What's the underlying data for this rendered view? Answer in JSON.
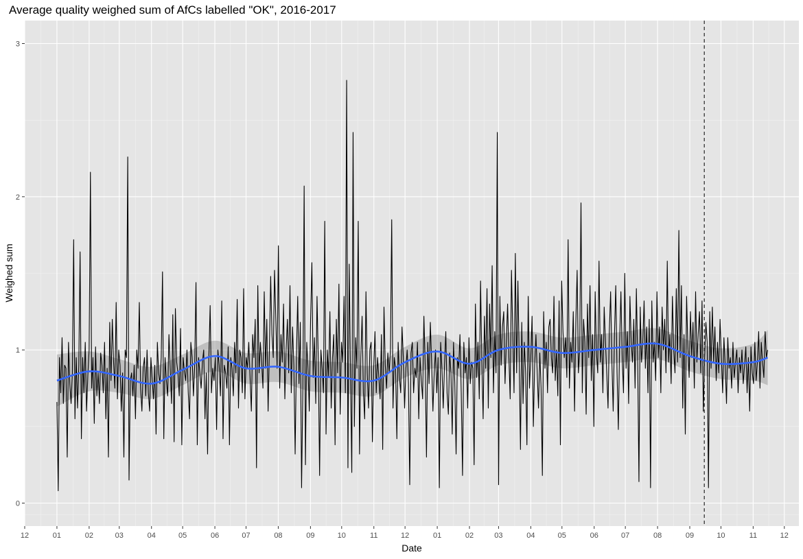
{
  "chart_data": {
    "type": "line",
    "title": "Average quality weighed sum of AfCs labelled \"OK\", 2016-2017",
    "xlabel": "Date",
    "ylabel": "Weighed sum",
    "x_range": [
      "2015-12-01",
      "2017-12-15"
    ],
    "ylim": [
      -0.15,
      3.15
    ],
    "y_ticks": [
      0,
      1,
      2,
      3
    ],
    "y_tick_labels": [
      "0",
      "1",
      "2",
      "3"
    ],
    "x_ticks": [
      "2015-12-01",
      "2016-01-01",
      "2016-02-01",
      "2016-03-01",
      "2016-04-01",
      "2016-05-01",
      "2016-06-01",
      "2016-07-01",
      "2016-08-01",
      "2016-09-01",
      "2016-10-01",
      "2016-11-01",
      "2016-12-01",
      "2017-01-01",
      "2017-02-01",
      "2017-03-01",
      "2017-04-01",
      "2017-05-01",
      "2017-06-01",
      "2017-07-01",
      "2017-08-01",
      "2017-09-01",
      "2017-10-01",
      "2017-11-01",
      "2017-12-01"
    ],
    "x_tick_labels": [
      "12",
      "01",
      "02",
      "03",
      "04",
      "05",
      "06",
      "07",
      "08",
      "09",
      "10",
      "11",
      "12",
      "01",
      "02",
      "03",
      "04",
      "05",
      "06",
      "07",
      "08",
      "09",
      "10",
      "11",
      "12"
    ],
    "grid": true,
    "background": "#e5e5e5",
    "vline": {
      "x": "2017-09-15",
      "style": "dashed",
      "color": "#333333"
    },
    "series": [
      {
        "kind": "daily",
        "color": "#000000",
        "start": "2016-01-01",
        "end": "2017-11-15",
        "values": [
          0.66,
          0.08,
          0.95,
          0.72,
          1.08,
          0.65,
          0.9,
          0.88,
          0.3,
          1.05,
          0.78,
          0.65,
          0.85,
          1.72,
          0.55,
          0.95,
          0.62,
          0.9,
          1.64,
          0.42,
          0.95,
          0.72,
          1.05,
          0.6,
          0.83,
          1.0,
          2.16,
          0.75,
          0.95,
          0.52,
          1.02,
          0.7,
          0.85,
          0.65,
          0.98,
          0.9,
          0.72,
          1.05,
          0.55,
          0.88,
          0.3,
          1.18,
          0.8,
          1.2,
          0.92,
          0.75,
          1.31,
          0.68,
          1.0,
          0.9,
          0.6,
          0.85,
          0.3,
          1.0,
          0.95,
          2.26,
          0.15,
          0.8,
          0.85,
          0.7,
          0.9,
          0.55,
          1.0,
          0.88,
          1.31,
          0.75,
          0.6,
          0.88,
          0.95,
          0.7,
          1.0,
          0.72,
          0.6,
          0.95,
          0.8,
          0.68,
          0.9,
          0.45,
          1.05,
          0.85,
          0.78,
          0.95,
          1.51,
          0.42,
          0.95,
          0.8,
          0.7,
          1.1,
          0.88,
          0.65,
          1.23,
          0.4,
          1.27,
          0.92,
          0.85,
          0.7,
          1.14,
          0.38,
          0.95,
          0.86,
          0.8,
          1.0,
          0.72,
          0.55,
          1.05,
          0.95,
          0.7,
          0.9,
          1.44,
          0.38,
          0.95,
          0.85,
          0.75,
          0.92,
          1.0,
          0.55,
          0.85,
          0.32,
          0.95,
          1.29,
          0.72,
          0.88,
          0.8,
          0.95,
          0.48,
          1.0,
          0.9,
          0.7,
          1.32,
          0.42,
          0.9,
          0.85,
          0.75,
          1.02,
          0.38,
          0.95,
          0.88,
          0.7,
          1.05,
          0.85,
          1.33,
          0.62,
          1.0,
          0.95,
          0.72,
          1.4,
          0.68,
          0.95,
          0.88,
          1.05,
          0.82,
          0.6,
          1.1,
          0.95,
          1.2,
          0.23,
          1.42,
          0.85,
          1.05,
          0.92,
          0.75,
          1.38,
          0.88,
          1.2,
          0.6,
          1.0,
          1.48,
          1.1,
          0.95,
          1.52,
          1.2,
          0.88,
          1.68,
          0.75,
          1.1,
          0.92,
          1.3,
          0.68,
          1.0,
          1.2,
          0.85,
          1.42,
          0.72,
          1.15,
          0.9,
          0.32,
          0.95,
          1.35,
          0.78,
          1.18,
          0.1,
          0.75,
          2.07,
          0.25,
          1.05,
          0.88,
          0.6,
          1.2,
          1.57,
          0.82,
          1.08,
          0.65,
          1.35,
          0.92,
          0.18,
          1.0,
          0.88,
          0.72,
          1.84,
          0.45,
          1.0,
          0.82,
          1.25,
          0.62,
          0.95,
          1.1,
          0.38,
          1.2,
          0.85,
          1.43,
          0.58,
          1.05,
          0.92,
          1.35,
          0.72,
          2.76,
          0.23,
          1.56,
          0.85,
          0.2,
          2.42,
          0.5,
          1.08,
          0.88,
          1.84,
          0.32,
          0.95,
          1.22,
          0.72,
          0.55,
          1.38,
          0.85,
          0.62,
          1.0,
          1.05,
          0.4,
          0.88,
          1.12,
          0.72,
          0.95,
          0.82,
          0.68,
          1.1,
          0.35,
          1.28,
          0.9,
          0.75,
          0.98,
          0.85,
          1.0,
          1.85,
          0.62,
          0.95,
          0.88,
          0.42,
          1.05,
          0.82,
          0.72,
          1.15,
          0.95,
          0.62,
          0.88,
          1.0,
          0.78,
          0.12,
          0.98,
          1.05,
          0.72,
          0.88,
          0.82,
          1.05,
          0.55,
          0.95,
          0.8,
          0.68,
          1.22,
          0.9,
          0.3,
          1.05,
          0.78,
          1.18,
          0.92,
          0.6,
          0.85,
          1.0,
          0.72,
          0.95,
          0.1,
          1.05,
          0.88,
          0.62,
          0.9,
          1.12,
          0.72,
          0.58,
          0.98,
          0.85,
          0.45,
          1.05,
          0.78,
          0.32,
          0.95,
          0.88,
          1.1,
          0.72,
          0.18,
          1.05,
          0.85,
          0.95,
          0.62,
          1.08,
          0.78,
          0.92,
          0.88,
          0.25,
          1.3,
          0.82,
          1.05,
          0.68,
          1.45,
          0.92,
          0.55,
          1.22,
          0.88,
          1.4,
          0.62,
          1.3,
          0.95,
          1.55,
          0.72,
          1.12,
          0.85,
          2.42,
          0.12,
          1.35,
          0.9,
          1.15,
          1.25,
          0.78,
          1.05,
          1.3,
          0.95,
          0.68,
          1.52,
          1.12,
          0.72,
          1.63,
          0.85,
          1.45,
          0.95,
          0.35,
          1.18,
          0.65,
          1.05,
          0.85,
          0.38,
          1.35,
          0.75,
          0.95,
          1.22,
          0.5,
          0.9,
          1.1,
          0.85,
          0.62,
          0.98,
          0.75,
          0.18,
          1.25,
          0.88,
          1.05,
          0.72,
          1.15,
          1.2,
          0.95,
          0.85,
          1.35,
          0.8,
          1.0,
          0.7,
          1.32,
          0.38,
          1.45,
          1.12,
          0.95,
          1.08,
          0.82,
          1.72,
          0.75,
          1.05,
          0.92,
          1.25,
          0.6,
          1.18,
          1.52,
          0.85,
          1.0,
          1.96,
          0.72,
          1.2,
          1.05,
          0.58,
          1.3,
          0.95,
          1.42,
          0.8,
          1.1,
          0.5,
          1.38,
          0.98,
          0.85,
          1.58,
          0.92,
          1.1,
          0.72,
          1.28,
          1.05,
          0.85,
          0.62,
          1.12,
          1.38,
          0.92,
          0.6,
          1.1,
          1.42,
          0.85,
          0.48,
          1.05,
          1.38,
          0.95,
          0.72,
          1.5,
          0.88,
          1.12,
          0.65,
          1.35,
          1.05,
          0.92,
          1.2,
          0.75,
          1.4,
          0.95,
          0.14,
          1.28,
          0.92,
          1.05,
          1.32,
          0.88,
          1.15,
          0.72,
          1.2,
          0.1,
          1.32,
          0.92,
          1.05,
          0.8,
          1.38,
          0.95,
          1.15,
          0.72,
          1.28,
          1.0,
          1.2,
          0.85,
          1.58,
          0.92,
          1.1,
          0.78,
          1.35,
          1.0,
          0.85,
          1.4,
          0.92,
          1.78,
          0.95,
          1.42,
          0.62,
          1.1,
          0.45,
          1.35,
          1.02,
          0.82,
          1.25,
          0.95,
          1.18,
          0.75,
          1.38,
          0.92,
          1.1,
          1.25,
          0.85,
          1.32,
          0.6,
          0.95,
          1.18,
          1.05,
          0.1,
          1.25,
          0.88,
          1.28,
          0.92,
          1.15,
          0.8,
          1.05,
          0.85,
          1.2,
          0.95,
          0.72,
          1.08,
          0.9,
          0.65,
          1.08,
          0.88,
          0.95,
          0.75,
          1.05,
          0.82,
          0.92,
          1.0,
          0.72,
          0.95,
          0.85,
          1.0,
          0.78,
          0.9,
          1.02,
          0.72,
          0.95,
          0.6,
          1.02,
          0.85,
          0.78,
          1.05,
          0.8,
          0.92,
          1.12,
          0.75,
          1.05,
          0.92,
          0.82,
          1.12,
          0.95,
          1.0
        ]
      },
      {
        "kind": "smooth",
        "color": "#3366ff",
        "ci_color": "#999999",
        "points": [
          [
            "2016-01-01",
            0.8,
            0.63,
            0.97
          ],
          [
            "2016-02-01",
            0.86,
            0.73,
            0.99
          ],
          [
            "2016-03-01",
            0.83,
            0.72,
            0.94
          ],
          [
            "2016-04-01",
            0.78,
            0.68,
            0.89
          ],
          [
            "2016-05-01",
            0.87,
            0.77,
            0.97
          ],
          [
            "2016-06-01",
            0.96,
            0.86,
            1.06
          ],
          [
            "2016-07-01",
            0.88,
            0.78,
            0.98
          ],
          [
            "2016-08-01",
            0.89,
            0.79,
            0.99
          ],
          [
            "2016-09-01",
            0.83,
            0.73,
            0.93
          ],
          [
            "2016-10-01",
            0.82,
            0.72,
            0.92
          ],
          [
            "2016-11-01",
            0.8,
            0.7,
            0.9
          ],
          [
            "2016-12-01",
            0.92,
            0.82,
            1.02
          ],
          [
            "2017-01-01",
            0.99,
            0.88,
            1.1
          ],
          [
            "2017-02-01",
            0.91,
            0.81,
            1.01
          ],
          [
            "2017-03-01",
            1.0,
            0.9,
            1.1
          ],
          [
            "2017-04-01",
            1.02,
            0.92,
            1.12
          ],
          [
            "2017-05-01",
            0.98,
            0.88,
            1.08
          ],
          [
            "2017-06-01",
            1.0,
            0.9,
            1.1
          ],
          [
            "2017-07-01",
            1.02,
            0.92,
            1.12
          ],
          [
            "2017-08-01",
            1.04,
            0.94,
            1.14
          ],
          [
            "2017-09-01",
            0.96,
            0.86,
            1.06
          ],
          [
            "2017-10-01",
            0.91,
            0.81,
            1.01
          ],
          [
            "2017-11-01",
            0.92,
            0.8,
            1.04
          ],
          [
            "2017-11-15",
            0.95,
            0.77,
            1.13
          ]
        ]
      }
    ]
  }
}
